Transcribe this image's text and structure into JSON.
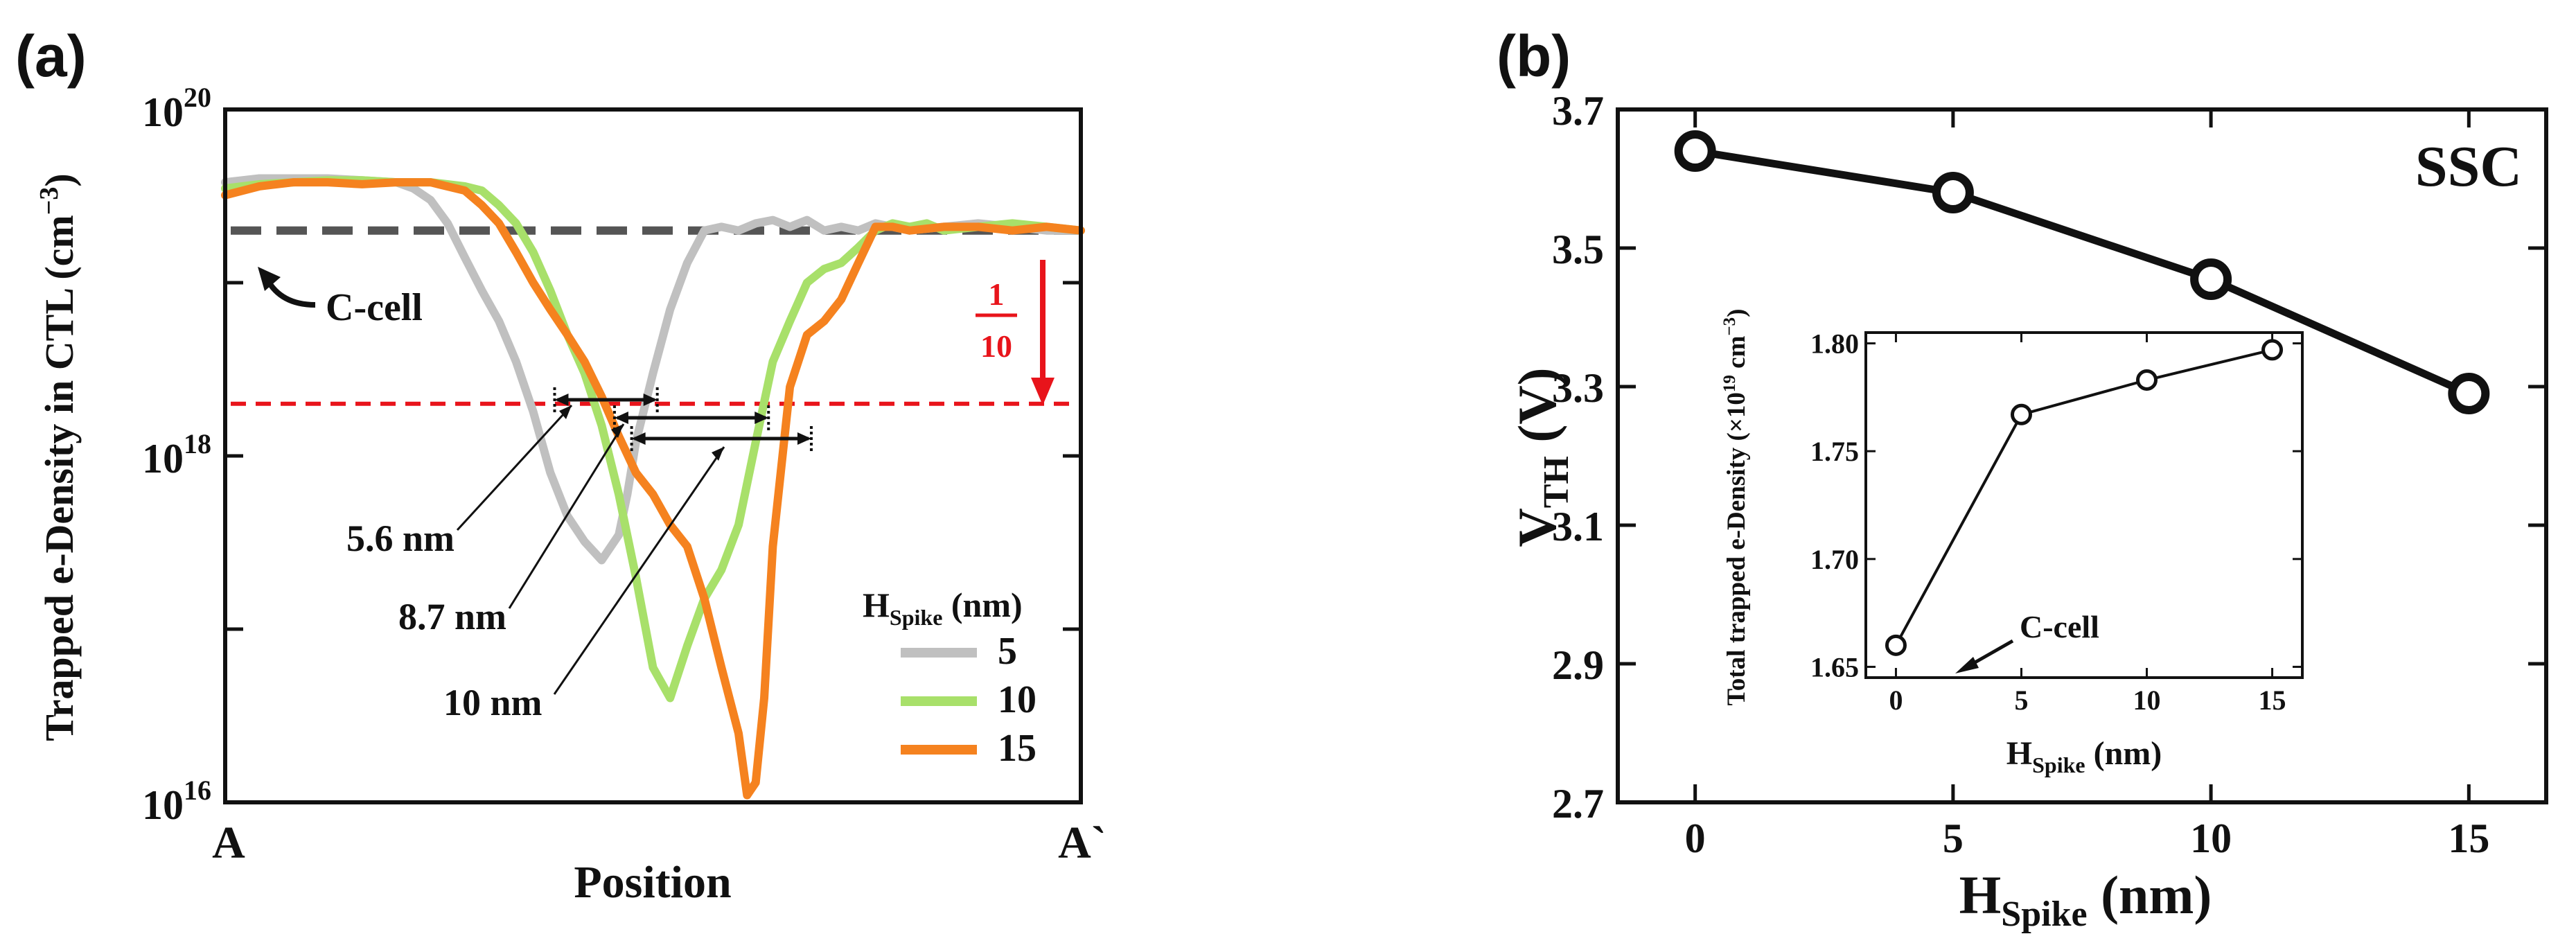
{
  "chart_data": [
    {
      "panel": "(a)",
      "type": "line",
      "xlabel": "Position",
      "xlabel_left": "A",
      "xlabel_right": "A`",
      "ylabel_prefix": "Trapped e-Density in CTL (cm",
      "ylabel_exp": "−3",
      "ylabel_suffix": ")",
      "yscale": "log",
      "ylim": [
        1e+16,
        1e+20
      ],
      "xlim": [
        0,
        100
      ],
      "yticks": [
        {
          "base": "10",
          "exp": "16",
          "value": 1e+16
        },
        {
          "base": "10",
          "exp": "18",
          "value": 1e+18
        },
        {
          "base": "10",
          "exp": "20",
          "value": 1e+20
        }
      ],
      "reference_lines": [
        {
          "label": "C-cell",
          "value": 2e+19,
          "color": "#555555",
          "style": "dashed"
        },
        {
          "label": "",
          "value": 2e+18,
          "color": "#e8141b",
          "style": "dashed"
        }
      ],
      "arrow_annotation": {
        "numerator": "1",
        "denominator": "10",
        "color": "#e8141b"
      },
      "width_annotations": [
        {
          "label": "5.6 nm",
          "from": 38.5,
          "to": 50.5
        },
        {
          "label": "8.7 nm",
          "from": 45.5,
          "to": 63.5
        },
        {
          "label": "10 nm",
          "from": 47.5,
          "to": 68.5
        }
      ],
      "legend": {
        "title_main": "H",
        "title_sub": "Spike",
        "title_unit": " (nm)"
      },
      "series": [
        {
          "name": "5",
          "color": "#c0c0c0",
          "x": [
            0,
            4,
            8,
            12,
            16,
            20,
            22,
            24,
            26,
            28,
            30,
            32,
            34,
            36,
            38,
            40,
            42,
            44,
            46,
            47,
            48,
            50,
            52,
            54,
            56,
            58,
            60,
            62,
            64,
            66,
            68,
            70,
            72,
            74,
            76,
            78,
            80,
            84,
            88,
            92,
            96,
            100
          ],
          "y": [
            3.8e+19,
            4e+19,
            4e+19,
            4e+19,
            3.9e+19,
            3.8e+19,
            3.5e+19,
            3e+19,
            2.2e+19,
            1.4e+19,
            9e+18,
            6e+18,
            3.5e+18,
            1.8e+18,
            8e+17,
            4.5e+17,
            3.2e+17,
            2.5e+17,
            3.5e+17,
            6e+17,
            1.2e+18,
            3e+18,
            7e+18,
            1.3e+19,
            2e+19,
            2.1e+19,
            2e+19,
            2.2e+19,
            2.3e+19,
            2.1e+19,
            2.3e+19,
            2e+19,
            2.1e+19,
            2e+19,
            2.2e+19,
            2.1e+19,
            2e+19,
            2.1e+19,
            2.2e+19,
            2.1e+19,
            2e+19,
            2e+19
          ]
        },
        {
          "name": "10",
          "color": "#a8e06a",
          "x": [
            0,
            4,
            8,
            12,
            16,
            20,
            24,
            28,
            30,
            32,
            34,
            36,
            38,
            40,
            42,
            44,
            46,
            48,
            50,
            52,
            54,
            56,
            58,
            60,
            62,
            64,
            66,
            68,
            70,
            72,
            74,
            76,
            78,
            80,
            82,
            84,
            88,
            92,
            96,
            100
          ],
          "y": [
            3.5e+19,
            3.7e+19,
            3.8e+19,
            3.9e+19,
            3.9e+19,
            3.8e+19,
            3.8e+19,
            3.6e+19,
            3.4e+19,
            2.8e+19,
            2.2e+19,
            1.5e+19,
            9e+18,
            5e+18,
            3e+18,
            1.5e+18,
            6e+17,
            2e+17,
            6e+16,
            4e+16,
            8e+16,
            1.5e+17,
            2.2e+17,
            4e+17,
            1.2e+18,
            3.5e+18,
            6e+18,
            1e+19,
            1.2e+19,
            1.3e+19,
            1.6e+19,
            2e+19,
            2.2e+19,
            2.1e+19,
            2.2e+19,
            2e+19,
            2.1e+19,
            2.2e+19,
            2.1e+19,
            2e+19
          ]
        },
        {
          "name": "15",
          "color": "#f5821f",
          "x": [
            0,
            4,
            8,
            12,
            16,
            20,
            24,
            28,
            30,
            32,
            34,
            36,
            38,
            40,
            42,
            44,
            46,
            48,
            50,
            52,
            54,
            56,
            58,
            60,
            61,
            62,
            63,
            64,
            66,
            68,
            70,
            72,
            74,
            76,
            78,
            80,
            84,
            88,
            92,
            96,
            100
          ],
          "y": [
            3.2e+19,
            3.6e+19,
            3.8e+19,
            3.8e+19,
            3.7e+19,
            3.8e+19,
            3.8e+19,
            3.4e+19,
            2.8e+19,
            2.2e+19,
            1.5e+19,
            1e+19,
            7e+18,
            5e+18,
            3.5e+18,
            2.2e+18,
            1.3e+18,
            8e+17,
            6e+17,
            4e+17,
            3e+17,
            1.5e+17,
            6e+16,
            2.5e+16,
            1.1e+16,
            1.3e+16,
            4e+16,
            3e+17,
            2.5e+18,
            5e+18,
            6e+18,
            8e+18,
            1.3e+19,
            2.1e+19,
            2.1e+19,
            2e+19,
            2.1e+19,
            2.1e+19,
            2e+19,
            2.1e+19,
            2e+19
          ]
        }
      ]
    },
    {
      "panel": "(b)",
      "type": "line",
      "title": "SSC",
      "xlabel_main": "H",
      "xlabel_sub": "Spike",
      "xlabel_unit": " (nm)",
      "ylabel_main": "V",
      "ylabel_sub": "TH",
      "ylabel_unit": " (V)",
      "xlim": [
        -1.5,
        16.5
      ],
      "ylim": [
        2.7,
        3.7
      ],
      "xticks": [
        "0",
        "5",
        "10",
        "15"
      ],
      "yticks": [
        "2.7",
        "2.9",
        "3.1",
        "3.3",
        "3.5",
        "3.7"
      ],
      "series": [
        {
          "name": "VTH",
          "x": [
            0,
            5,
            10,
            15
          ],
          "y": [
            3.64,
            3.58,
            3.455,
            3.29
          ]
        }
      ],
      "inset": {
        "xlabel_main": "H",
        "xlabel_sub": "Spike",
        "xlabel_unit": " (nm)",
        "ylabel_prefix": "Total trapped e-Density (×10",
        "ylabel_exp1": "19",
        "ylabel_mid": " cm",
        "ylabel_exp2": "−3",
        "ylabel_suffix": ")",
        "xlim": [
          -1.2,
          16.2
        ],
        "ylim": [
          1.645,
          1.805
        ],
        "xticks": [
          "0",
          "5",
          "10",
          "15"
        ],
        "yticks": [
          "1.65",
          "1.70",
          "1.75",
          "1.80"
        ],
        "annotation": "C-cell",
        "series": [
          {
            "name": "Total",
            "x": [
              0,
              5,
              10,
              15
            ],
            "y": [
              1.66,
              1.767,
              1.783,
              1.797
            ]
          }
        ]
      }
    }
  ]
}
